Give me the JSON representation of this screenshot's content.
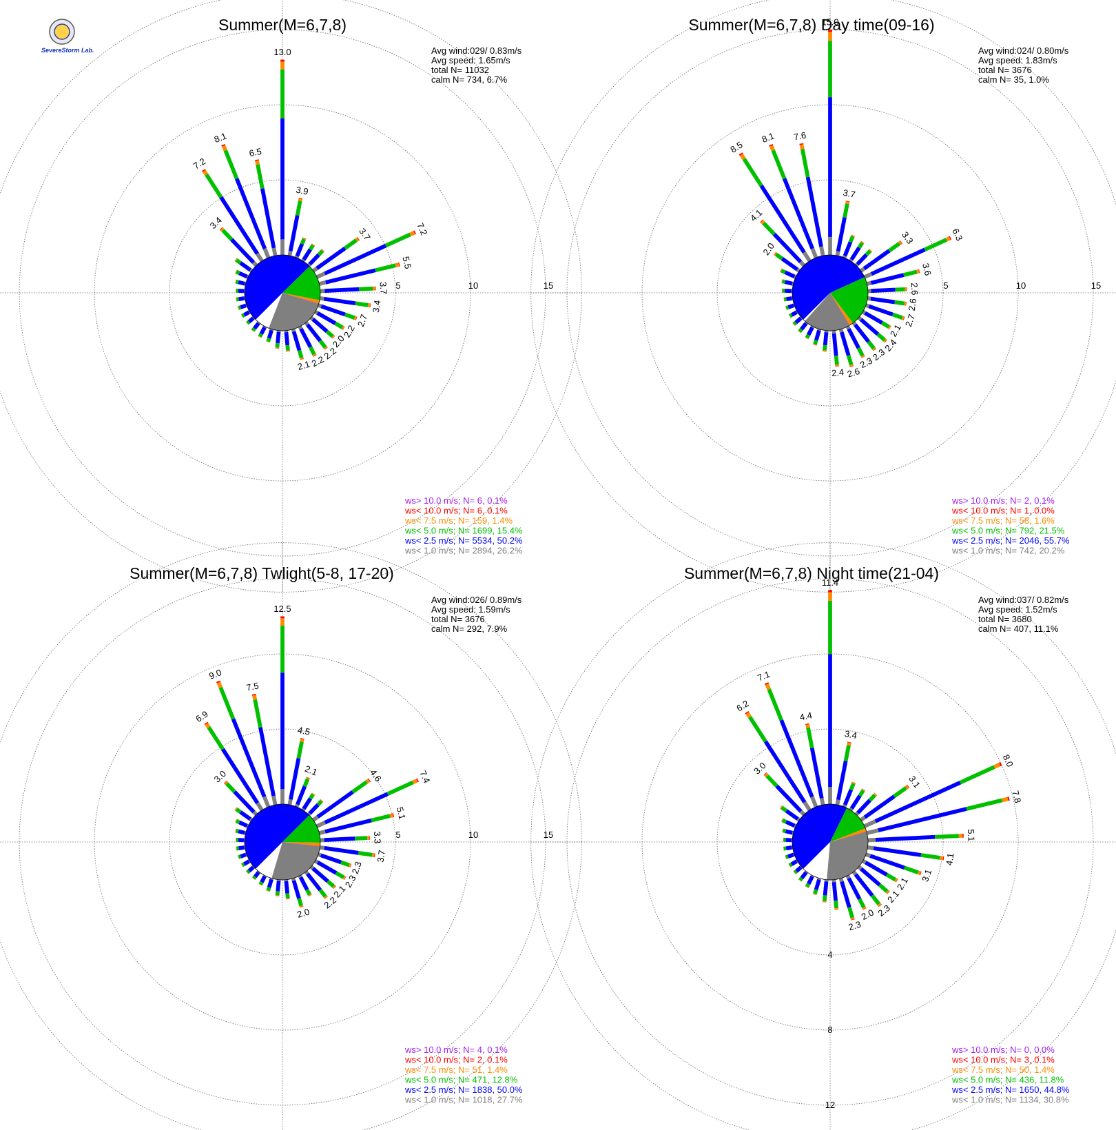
{
  "logo": {
    "name": "SevereStorm Lab.",
    "seal": "lab-seal-icon"
  },
  "chart_data": [
    {
      "type": "wind-rose",
      "title": "Summer(M=6,7,8)",
      "ring_labels": [
        "5",
        "10",
        "15"
      ],
      "rmax": 15,
      "stats": [
        "Avg wind:029/ 0.83m/s",
        "Avg speed: 1.65m/s",
        "total N=      11032",
        "calm N=    734,  6.7%"
      ],
      "pie": {
        "gray": 26.2,
        "blue": 50.2,
        "green": 15.4,
        "orange": 1.4,
        "red": 0.1,
        "purple": 0.1
      },
      "directions": [
        {
          "label": "13.0",
          "total": 13.0
        },
        {
          "label": "3.9",
          "total": 3.9
        },
        {
          "label": "",
          "total": 1.4
        },
        {
          "label": "",
          "total": 1.3
        },
        {
          "label": "",
          "total": 1.4
        },
        {
          "label": "3.7",
          "total": 3.7
        },
        {
          "label": "7.2",
          "total": 7.2
        },
        {
          "label": "5.5",
          "total": 5.5
        },
        {
          "label": "3.7",
          "total": 3.7
        },
        {
          "label": "3.4",
          "total": 3.4
        },
        {
          "label": "2.7",
          "total": 2.7
        },
        {
          "label": "2.2",
          "total": 2.2
        },
        {
          "label": "2.0",
          "total": 2.0
        },
        {
          "label": "2.2",
          "total": 2.2
        },
        {
          "label": "2.2",
          "total": 2.2
        },
        {
          "label": "2.1",
          "total": 2.1
        },
        {
          "label": "",
          "total": 1.4
        },
        {
          "label": "",
          "total": 1.2
        },
        {
          "label": "",
          "total": 0.9
        },
        {
          "label": "",
          "total": 0.8
        },
        {
          "label": "",
          "total": 0.7
        },
        {
          "label": "",
          "total": 0.6
        },
        {
          "label": "",
          "total": 0.6
        },
        {
          "label": "",
          "total": 0.6
        },
        {
          "label": "",
          "total": 0.6
        },
        {
          "label": "",
          "total": 0.6
        },
        {
          "label": "",
          "total": 0.7
        },
        {
          "label": "",
          "total": 0.9
        },
        {
          "label": "",
          "total": 1.3
        },
        {
          "label": "3.4",
          "total": 3.4
        },
        {
          "label": "7.2",
          "total": 7.2
        },
        {
          "label": "8.1",
          "total": 8.1
        },
        {
          "label": "6.5",
          "total": 6.5
        }
      ],
      "legend": [
        {
          "text": "ws> 10.0 m/s; N=     6,  0.1%",
          "color": "#a020f0"
        },
        {
          "text": "ws< 10.0 m/s; N=     6,  0.1%",
          "color": "#ff0000"
        },
        {
          "text": "ws<  7.5 m/s; N=   159,  1.4%",
          "color": "#ff8c00"
        },
        {
          "text": "ws<  5.0 m/s; N=  1699, 15.4%",
          "color": "#00c000"
        },
        {
          "text": "ws<  2.5 m/s; N=  5534, 50.2%",
          "color": "#0000ff"
        },
        {
          "text": "ws<  1.0 m/s; N=  2894, 26.2%",
          "color": "#808080"
        }
      ]
    },
    {
      "type": "wind-rose",
      "title": "Summer(M=6,7,8) Day time(09-16)",
      "ring_labels": [
        "5",
        "10",
        "15"
      ],
      "rmax": 15,
      "stats": [
        "Avg wind:024/ 0.80m/s",
        "Avg speed: 1.83m/s",
        "total N=        3676",
        "calm N=     35,   1.0%"
      ],
      "pie": {
        "gray": 20.2,
        "blue": 55.7,
        "green": 21.5,
        "orange": 1.6,
        "red": 0.0,
        "purple": 0.1
      },
      "directions": [
        {
          "label": "15.0",
          "total": 15.0
        },
        {
          "label": "3.7",
          "total": 3.7
        },
        {
          "label": "",
          "total": 1.6
        },
        {
          "label": "",
          "total": 1.5
        },
        {
          "label": "",
          "total": 1.4
        },
        {
          "label": "3.3",
          "total": 3.3
        },
        {
          "label": "6.3",
          "total": 6.3
        },
        {
          "label": "3.6",
          "total": 3.6
        },
        {
          "label": "2.6",
          "total": 2.6
        },
        {
          "label": "2.6",
          "total": 2.6
        },
        {
          "label": "2.7",
          "total": 2.7
        },
        {
          "label": "2.1",
          "total": 2.1
        },
        {
          "label": "2.4",
          "total": 2.4
        },
        {
          "label": "2.3",
          "total": 2.3
        },
        {
          "label": "2.3",
          "total": 2.3
        },
        {
          "label": "2.6",
          "total": 2.6
        },
        {
          "label": "2.4",
          "total": 2.4
        },
        {
          "label": "",
          "total": 1.4
        },
        {
          "label": "",
          "total": 1.1
        },
        {
          "label": "",
          "total": 0.9
        },
        {
          "label": "",
          "total": 0.8
        },
        {
          "label": "",
          "total": 0.7
        },
        {
          "label": "",
          "total": 0.6
        },
        {
          "label": "",
          "total": 0.6
        },
        {
          "label": "",
          "total": 0.6
        },
        {
          "label": "",
          "total": 0.7
        },
        {
          "label": "",
          "total": 0.8
        },
        {
          "label": "",
          "total": 1.1
        },
        {
          "label": "2.0",
          "total": 2.0
        },
        {
          "label": "4.1",
          "total": 4.1
        },
        {
          "label": "8.5",
          "total": 8.5
        },
        {
          "label": "8.1",
          "total": 8.1
        },
        {
          "label": "7.6",
          "total": 7.6
        }
      ],
      "legend": [
        {
          "text": "ws> 10.0 m/s; N=     2,  0.1%",
          "color": "#a020f0"
        },
        {
          "text": "ws< 10.0 m/s; N=     1,  0.0%",
          "color": "#ff0000"
        },
        {
          "text": "ws<  7.5 m/s; N=    58,  1.6%",
          "color": "#ff8c00"
        },
        {
          "text": "ws<  5.0 m/s; N=   792, 21.5%",
          "color": "#00c000"
        },
        {
          "text": "ws<  2.5 m/s; N=  2046, 55.7%",
          "color": "#0000ff"
        },
        {
          "text": "ws<  1.0 m/s; N=   742, 20.2%",
          "color": "#808080"
        }
      ]
    },
    {
      "type": "wind-rose",
      "title": "Summer(M=6,7,8) Twlight(5-8, 17-20)",
      "ring_labels": [
        "5",
        "10",
        "15"
      ],
      "rmax": 15,
      "stats": [
        "Avg wind:026/ 0.89m/s",
        "Avg speed: 1.59m/s",
        "total N=        3676",
        "calm N=    292,   7.9%"
      ],
      "pie": {
        "gray": 27.7,
        "blue": 50.0,
        "green": 12.8,
        "orange": 1.4,
        "red": 0.1,
        "purple": 0.1
      },
      "directions": [
        {
          "label": "12.5",
          "total": 12.5
        },
        {
          "label": "4.5",
          "total": 4.5
        },
        {
          "label": "2.1",
          "total": 2.1
        },
        {
          "label": "",
          "total": 1.3
        },
        {
          "label": "",
          "total": 1.3
        },
        {
          "label": "4.6",
          "total": 4.6
        },
        {
          "label": "7.4",
          "total": 7.4
        },
        {
          "label": "5.1",
          "total": 5.1
        },
        {
          "label": "3.3",
          "total": 3.3
        },
        {
          "label": "3.7",
          "total": 3.7
        },
        {
          "label": "2.3",
          "total": 2.3
        },
        {
          "label": "2.3",
          "total": 2.3
        },
        {
          "label": "2.1",
          "total": 2.1
        },
        {
          "label": "2.2",
          "total": 2.2
        },
        {
          "label": "",
          "total": 1.5
        },
        {
          "label": "2.0",
          "total": 2.0
        },
        {
          "label": "",
          "total": 1.3
        },
        {
          "label": "",
          "total": 1.1
        },
        {
          "label": "",
          "total": 0.9
        },
        {
          "label": "",
          "total": 0.7
        },
        {
          "label": "",
          "total": 0.6
        },
        {
          "label": "",
          "total": 0.6
        },
        {
          "label": "",
          "total": 0.6
        },
        {
          "label": "",
          "total": 0.6
        },
        {
          "label": "",
          "total": 0.6
        },
        {
          "label": "",
          "total": 0.6
        },
        {
          "label": "",
          "total": 0.7
        },
        {
          "label": "",
          "total": 0.9
        },
        {
          "label": "",
          "total": 1.3
        },
        {
          "label": "3.0",
          "total": 3.0
        },
        {
          "label": "6.9",
          "total": 6.9
        },
        {
          "label": "9.0",
          "total": 9.0
        },
        {
          "label": "7.5",
          "total": 7.5
        }
      ],
      "legend": [
        {
          "text": "ws> 10.0 m/s; N=     4,  0.1%",
          "color": "#a020f0"
        },
        {
          "text": "ws< 10.0 m/s; N=     2,  0.1%",
          "color": "#ff0000"
        },
        {
          "text": "ws<  7.5 m/s; N=    51,  1.4%",
          "color": "#ff8c00"
        },
        {
          "text": "ws<  5.0 m/s; N=   471, 12.8%",
          "color": "#00c000"
        },
        {
          "text": "ws<  2.5 m/s; N=  1838, 50.0%",
          "color": "#0000ff"
        },
        {
          "text": "ws<  1.0 m/s; N=  1018, 27.7%",
          "color": "#808080"
        }
      ]
    },
    {
      "type": "wind-rose",
      "title": "Summer(M=6,7,8) Night time(21-04)",
      "ring_labels": [
        "4",
        "8",
        "12"
      ],
      "rmax": 12,
      "stats": [
        "Avg wind:037/ 0.82m/s",
        "Avg speed: 1.52m/s",
        "total N=        3680",
        "calm N=    407,  11.1%"
      ],
      "pie": {
        "gray": 30.8,
        "blue": 44.8,
        "green": 11.8,
        "orange": 1.4,
        "red": 0.1,
        "purple": 0.0
      },
      "directions": [
        {
          "label": "11.4",
          "total": 11.4
        },
        {
          "label": "3.4",
          "total": 3.4
        },
        {
          "label": "",
          "total": 1.4
        },
        {
          "label": "",
          "total": 1.3
        },
        {
          "label": "",
          "total": 1.5
        },
        {
          "label": "3.1",
          "total": 3.1
        },
        {
          "label": "8.0",
          "total": 8.0
        },
        {
          "label": "7.8",
          "total": 7.8
        },
        {
          "label": "5.1",
          "total": 5.1
        },
        {
          "label": "4.1",
          "total": 4.1
        },
        {
          "label": "3.1",
          "total": 3.1
        },
        {
          "label": "2.1",
          "total": 2.1
        },
        {
          "label": "2.1",
          "total": 2.1
        },
        {
          "label": "2.3",
          "total": 2.3
        },
        {
          "label": "2.0",
          "total": 2.0
        },
        {
          "label": "2.3",
          "total": 2.3
        },
        {
          "label": "",
          "total": 1.6
        },
        {
          "label": "",
          "total": 1.2
        },
        {
          "label": "",
          "total": 0.9
        },
        {
          "label": "",
          "total": 0.7
        },
        {
          "label": "",
          "total": 0.6
        },
        {
          "label": "",
          "total": 0.5
        },
        {
          "label": "",
          "total": 0.5
        },
        {
          "label": "",
          "total": 0.5
        },
        {
          "label": "",
          "total": 0.5
        },
        {
          "label": "",
          "total": 0.5
        },
        {
          "label": "",
          "total": 0.6
        },
        {
          "label": "",
          "total": 0.8
        },
        {
          "label": "",
          "total": 1.2
        },
        {
          "label": "3.0",
          "total": 3.0
        },
        {
          "label": "6.2",
          "total": 6.2
        },
        {
          "label": "7.1",
          "total": 7.1
        },
        {
          "label": "4.4",
          "total": 4.4
        }
      ],
      "legend": [
        {
          "text": "ws> 10.0 m/s; N=     0,  0.0%",
          "color": "#a020f0"
        },
        {
          "text": "ws< 10.0 m/s; N=     3,  0.1%",
          "color": "#ff0000"
        },
        {
          "text": "ws<  7.5 m/s; N=    50,  1.4%",
          "color": "#ff8c00"
        },
        {
          "text": "ws<  5.0 m/s; N=   436, 11.8%",
          "color": "#00c000"
        },
        {
          "text": "ws<  2.5 m/s; N=  1650, 44.8%",
          "color": "#0000ff"
        },
        {
          "text": "ws<  1.0 m/s; N=  1134, 30.8%",
          "color": "#808080"
        }
      ]
    }
  ]
}
